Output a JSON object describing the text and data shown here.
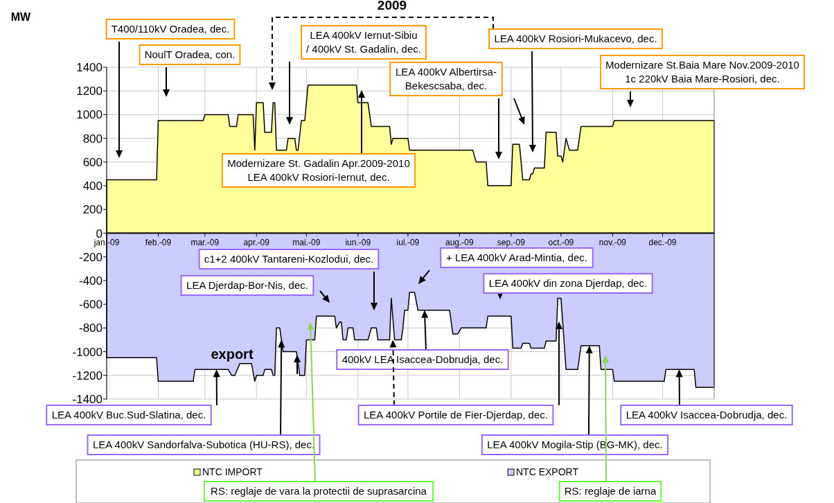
{
  "chart_data": {
    "type": "area",
    "title": "2009",
    "xlim": [
      "2009-01-01",
      "2010-01-01"
    ],
    "xticks": [
      {
        "value": "2009-01-01",
        "label": "jan.-09"
      },
      {
        "value": "2009-02-01",
        "label": "feb.-09"
      },
      {
        "value": "2009-03-01",
        "label": "mar.-09"
      },
      {
        "value": "2009-04-01",
        "label": "apr.-09"
      },
      {
        "value": "2009-05-01",
        "label": "mai.-09"
      },
      {
        "value": "2009-06-01",
        "label": "iun.-09"
      },
      {
        "value": "2009-07-01",
        "label": "iul.-09"
      },
      {
        "value": "2009-08-01",
        "label": "aug.-09"
      },
      {
        "value": "2009-09-01",
        "label": "sep.-09"
      },
      {
        "value": "2009-10-01",
        "label": "oct.-09"
      },
      {
        "value": "2009-11-01",
        "label": "nov.-09"
      },
      {
        "value": "2009-12-01",
        "label": "dec.-09"
      }
    ],
    "ylim": [
      -1400,
      1400
    ],
    "yticks": [
      -1400,
      -1200,
      -1000,
      -800,
      -600,
      -400,
      -200,
      0,
      200,
      400,
      600,
      800,
      1000,
      1200,
      1400
    ],
    "grid": true,
    "legend": "bottom",
    "series": [
      {
        "name": "NTC IMPORT",
        "color": "#ffff99",
        "x": [
          "2009-01-01",
          "2009-01-31",
          "2009-02-01",
          "2009-02-28",
          "2009-03-01",
          "2009-03-15",
          "2009-03-16",
          "2009-03-20",
          "2009-03-21",
          "2009-03-30",
          "2009-03-31",
          "2009-04-01",
          "2009-04-05",
          "2009-04-06",
          "2009-04-10",
          "2009-04-11",
          "2009-04-12",
          "2009-04-13",
          "2009-04-19",
          "2009-04-20",
          "2009-04-24",
          "2009-04-25",
          "2009-04-26",
          "2009-04-28",
          "2009-04-30",
          "2009-05-02",
          "2009-05-31",
          "2009-06-01",
          "2009-06-07",
          "2009-06-09",
          "2009-06-20",
          "2009-06-21",
          "2009-06-22",
          "2009-07-01",
          "2009-07-02",
          "2009-08-09",
          "2009-08-11",
          "2009-08-17",
          "2009-08-18",
          "2009-09-01",
          "2009-09-02",
          "2009-09-06",
          "2009-09-08",
          "2009-09-12",
          "2009-09-13",
          "2009-09-14",
          "2009-09-15",
          "2009-09-21",
          "2009-09-22",
          "2009-09-28",
          "2009-09-29",
          "2009-10-01",
          "2009-10-02",
          "2009-10-04",
          "2009-10-06",
          "2009-10-11",
          "2009-10-13",
          "2009-11-01",
          "2009-11-02",
          "2010-01-01"
        ],
        "values": [
          450,
          450,
          950,
          950,
          1000,
          1000,
          900,
          900,
          1000,
          1000,
          700,
          1100,
          1100,
          850,
          850,
          1100,
          1100,
          700,
          700,
          800,
          800,
          700,
          700,
          950,
          950,
          1250,
          1250,
          1100,
          1100,
          900,
          900,
          750,
          800,
          800,
          700,
          700,
          600,
          600,
          400,
          400,
          750,
          750,
          450,
          450,
          500,
          500,
          550,
          550,
          850,
          850,
          650,
          650,
          600,
          800,
          700,
          700,
          900,
          900,
          950,
          950
        ]
      },
      {
        "name": "NTC EXPORT",
        "color": "#ccccff",
        "x": [
          "2009-01-01",
          "2009-01-31",
          "2009-02-01",
          "2009-02-22",
          "2009-02-23",
          "2009-03-15",
          "2009-03-17",
          "2009-03-19",
          "2009-03-22",
          "2009-03-29",
          "2009-03-31",
          "2009-04-01",
          "2009-04-05",
          "2009-04-06",
          "2009-04-10",
          "2009-04-11",
          "2009-04-12",
          "2009-04-13",
          "2009-04-15",
          "2009-04-17",
          "2009-04-25",
          "2009-04-27",
          "2009-04-30",
          "2009-05-01",
          "2009-05-06",
          "2009-05-07",
          "2009-05-18",
          "2009-05-19",
          "2009-05-21",
          "2009-05-22",
          "2009-05-23",
          "2009-05-25",
          "2009-05-26",
          "2009-05-29",
          "2009-05-30",
          "2009-06-07",
          "2009-06-09",
          "2009-06-12",
          "2009-06-13",
          "2009-06-20",
          "2009-06-21",
          "2009-06-23",
          "2009-06-27",
          "2009-06-28",
          "2009-06-29",
          "2009-07-01",
          "2009-07-02",
          "2009-07-05",
          "2009-07-07",
          "2009-07-26",
          "2009-07-28",
          "2009-07-31",
          "2009-08-02",
          "2009-08-17",
          "2009-08-18",
          "2009-09-01",
          "2009-09-02",
          "2009-09-07",
          "2009-09-08",
          "2009-09-12",
          "2009-09-13",
          "2009-09-21",
          "2009-09-22",
          "2009-09-28",
          "2009-09-29",
          "2009-10-01",
          "2009-10-04",
          "2009-10-11",
          "2009-10-13",
          "2009-10-24",
          "2009-10-25",
          "2009-11-01",
          "2009-11-02",
          "2009-12-02",
          "2009-12-03",
          "2009-12-20",
          "2009-12-21",
          "2010-01-01"
        ],
        "values": [
          -1050,
          -1050,
          -1250,
          -1250,
          -1150,
          -1150,
          -1200,
          -1200,
          -1100,
          -1100,
          -1250,
          -1200,
          -1200,
          -1150,
          -1150,
          -1200,
          -1200,
          -800,
          -800,
          -1000,
          -1000,
          -1200,
          -1200,
          -900,
          -900,
          -700,
          -700,
          -800,
          -750,
          -750,
          -900,
          -900,
          -800,
          -800,
          -900,
          -900,
          -800,
          -800,
          -900,
          -900,
          -550,
          -900,
          -900,
          -800,
          -650,
          -650,
          -500,
          -500,
          -650,
          -650,
          -850,
          -850,
          -800,
          -800,
          -700,
          -700,
          -970,
          -970,
          -930,
          -930,
          -970,
          -970,
          -910,
          -910,
          -550,
          -550,
          -1150,
          -1150,
          -950,
          -950,
          -1150,
          -1150,
          -1250,
          -1250,
          -1150,
          -1150,
          -1300,
          -1300
        ]
      }
    ],
    "annotations": [
      "T400/110kV Oradea, dec.",
      "NoulT Oradea, con.",
      "LEA 400kV Iernut-Sibiu\n/ 400kV St. Gadalin, dec.",
      "LEA 400kV Rosiori-Mukacevo, dec.",
      "LEA 400kV Albertirsa-\nBekescsaba, dec.",
      "Modernizare St.Baia Mare Nov.2009-2010\n1c 220kV Baia Mare-Rosiori, dec.",
      "Modernizare St. Gadalin Apr.2009-2010\nLEA 400kV Rosiori-Iernut, dec.",
      "c1+2 400kV Tantareni-Kozlodui, dec.",
      "+ LEA 400kV Arad-Mintia, dec.",
      "LEA Djerdap-Bor-Nis, dec.",
      "LEA 400kV din zona Djerdap, dec.",
      "export",
      {
        "text": "400kV LEA Isaccea-Dobrudja, dec.",
        "x": "2009-07-11",
        "y": -650
      },
      {
        "text": "LEA 400kV Buc.Sud-Slatina, dec.",
        "x": "2009-03-08",
        "y": -1150
      },
      {
        "text": "LEA 400kV Portile de Fier-Djerdap, dec.",
        "x": "2009-06-22",
        "y": -900
      },
      {
        "text": "LEA 400kV Isaccea-Dobrudja, dec.",
        "x": "2009-12-11",
        "y": -1150
      },
      {
        "text": "LEA 400kV Sandorfalva-Subotica (HU-RS), dec.",
        "x": "2009-04-16",
        "y": -900
      },
      {
        "text": "LEA 400kV Mogila-Stip (BG-MK), dec.",
        "x": "2009-10-18",
        "y": -950
      },
      "RS: reglaje de vara la  protectii de suprasarcina",
      "RS: reglaje de iarna",
      "MW"
    ]
  }
}
